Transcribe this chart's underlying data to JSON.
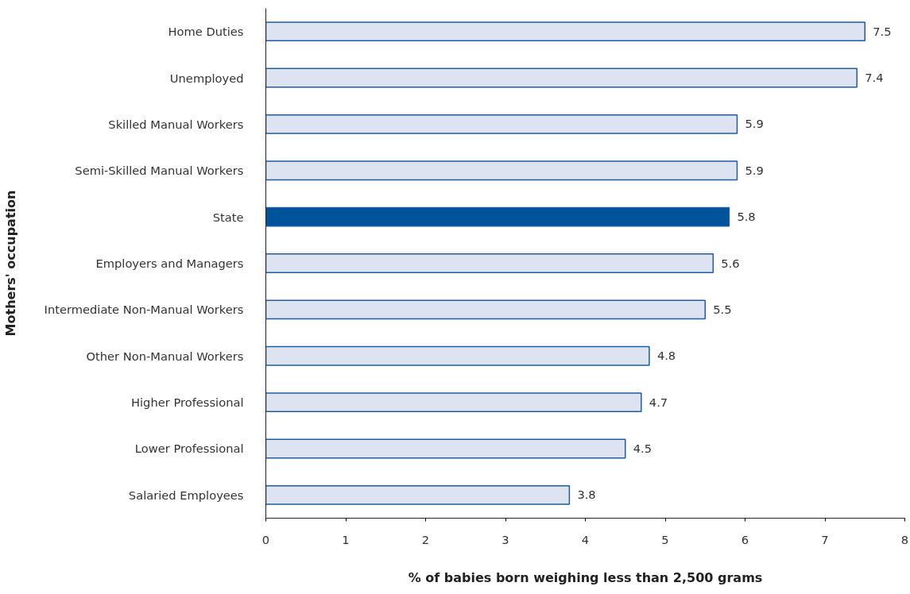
{
  "chart_data": {
    "type": "bar",
    "orientation": "horizontal",
    "xlabel": "% of babies born weighing less than 2,500 grams",
    "ylabel": "Mothers' occupation",
    "categories": [
      "Home Duties",
      "Unemployed",
      "Skilled Manual Workers",
      "Semi-Skilled Manual Workers",
      "State",
      "Employers and Managers",
      "Intermediate Non-Manual Workers",
      "Other Non-Manual Workers",
      "Higher Professional",
      "Lower Professional",
      "Salaried Employees"
    ],
    "values": [
      7.5,
      7.4,
      5.9,
      5.9,
      5.8,
      5.6,
      5.5,
      4.8,
      4.7,
      4.5,
      3.8
    ],
    "colors": [
      "#dde3f1",
      "#dde3f1",
      "#dde3f1",
      "#dde3f1",
      "#00529b",
      "#dde3f1",
      "#dde3f1",
      "#dde3f1",
      "#dde3f1",
      "#dde3f1",
      "#dde3f1"
    ],
    "xlim": [
      0,
      8
    ],
    "xticks": [
      0,
      1,
      2,
      3,
      4,
      5,
      6,
      7,
      8
    ],
    "grid": false,
    "data_labels": true
  }
}
